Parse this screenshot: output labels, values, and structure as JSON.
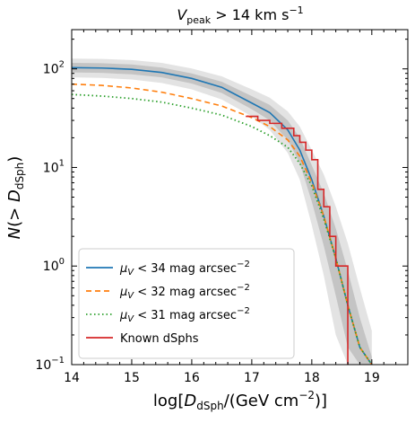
{
  "chart_data": {
    "type": "line",
    "title": {
      "main": "V",
      "sub": "peak",
      "rest": " > 14 km s",
      "sup": "−1"
    },
    "xlabel": {
      "pre": "log[",
      "italic": "D",
      "sub": "dSph",
      "post": "/(GeV cm",
      "sup": "−2",
      "end": ")]"
    },
    "ylabel": {
      "italic_n": "N",
      "pre": "(> ",
      "italic_d": "D",
      "sub": "dSph",
      "post": ")"
    },
    "xlim": [
      14,
      19.6
    ],
    "ylim": [
      0.1,
      250
    ],
    "yscale": "log",
    "x_ticks": [
      14,
      15,
      16,
      17,
      18,
      19
    ],
    "x_tick_labels": [
      "14",
      "15",
      "16",
      "17",
      "18",
      "19"
    ],
    "y_ticks": [
      {
        "value": 0.1,
        "base": "10",
        "exp": "−1"
      },
      {
        "value": 1,
        "base": "10",
        "exp": "0"
      },
      {
        "value": 10,
        "base": "10",
        "exp": "1"
      },
      {
        "value": 100,
        "base": "10",
        "exp": "2"
      }
    ],
    "legend_position": "lower-left",
    "series": [
      {
        "name": {
          "mu": "μ",
          "sub": "V",
          "rest": " < 34 mag arcsec",
          "sup": "−2"
        },
        "color": "#1f77b4",
        "style": "solid",
        "x": [
          14.0,
          14.5,
          15.0,
          15.5,
          16.0,
          16.5,
          17.0,
          17.3,
          17.6,
          17.8,
          18.0,
          18.2,
          18.4,
          18.6,
          18.8,
          19.0
        ],
        "y": [
          103,
          102,
          99,
          92,
          80,
          65,
          45,
          36,
          24,
          15,
          7.5,
          3.2,
          1.2,
          0.4,
          0.15,
          0.1
        ]
      },
      {
        "name": {
          "mu": "μ",
          "sub": "V",
          "rest": " < 32 mag arcsec",
          "sup": "−2"
        },
        "color": "#ff7f0e",
        "style": "dashed",
        "x": [
          14.0,
          14.5,
          15.0,
          15.5,
          16.0,
          16.5,
          17.0,
          17.3,
          17.6,
          17.8,
          18.0,
          18.2,
          18.4,
          18.6,
          18.8,
          19.0
        ],
        "y": [
          70,
          68,
          64,
          58,
          50,
          42,
          32,
          26,
          19,
          13,
          7,
          3.2,
          1.2,
          0.4,
          0.15,
          0.1
        ]
      },
      {
        "name": {
          "mu": "μ",
          "sub": "V",
          "rest": " < 31 mag arcsec",
          "sup": "−2"
        },
        "color": "#2ca02c",
        "style": "dotted",
        "x": [
          14.0,
          14.5,
          15.0,
          15.5,
          16.0,
          16.5,
          17.0,
          17.3,
          17.6,
          17.8,
          18.0,
          18.2,
          18.4,
          18.6,
          18.8,
          19.0
        ],
        "y": [
          55,
          53,
          50,
          46,
          40,
          34,
          26,
          21,
          16,
          11,
          6.5,
          3.0,
          1.2,
          0.4,
          0.15,
          0.1
        ]
      },
      {
        "name": {
          "mu": "",
          "sub": "",
          "rest": "Known dSphs",
          "sup": ""
        },
        "color": "#d62728",
        "style": "steps",
        "x": [
          16.9,
          17.1,
          17.3,
          17.5,
          17.7,
          17.8,
          17.9,
          18.0,
          18.1,
          18.2,
          18.3,
          18.4,
          18.6
        ],
        "y": [
          33,
          30,
          28,
          25,
          21,
          18,
          15,
          12,
          6,
          4,
          2,
          1,
          0.1
        ]
      }
    ],
    "band": {
      "x": [
        14.0,
        14.5,
        15.0,
        15.5,
        16.0,
        16.5,
        17.0,
        17.3,
        17.6,
        17.8,
        18.0,
        18.2,
        18.4,
        18.6,
        18.8,
        19.0
      ],
      "inner_lo": [
        92,
        91,
        88,
        82,
        71,
        57,
        39,
        30,
        19,
        11,
        4.5,
        1.6,
        0.5,
        0.15,
        0.1,
        0.1
      ],
      "inner_hi": [
        115,
        114,
        111,
        103,
        90,
        74,
        53,
        43,
        30,
        20,
        10.5,
        5.5,
        2.4,
        0.9,
        0.3,
        0.12
      ],
      "outer_lo": [
        82,
        81,
        78,
        72,
        62,
        49,
        33,
        24,
        14,
        7.5,
        2.6,
        0.8,
        0.2,
        0.1,
        0.1,
        0.1
      ],
      "outer_hi": [
        127,
        126,
        123,
        115,
        101,
        84,
        62,
        51,
        37,
        26,
        15,
        8.5,
        4.0,
        1.7,
        0.6,
        0.22
      ]
    }
  }
}
